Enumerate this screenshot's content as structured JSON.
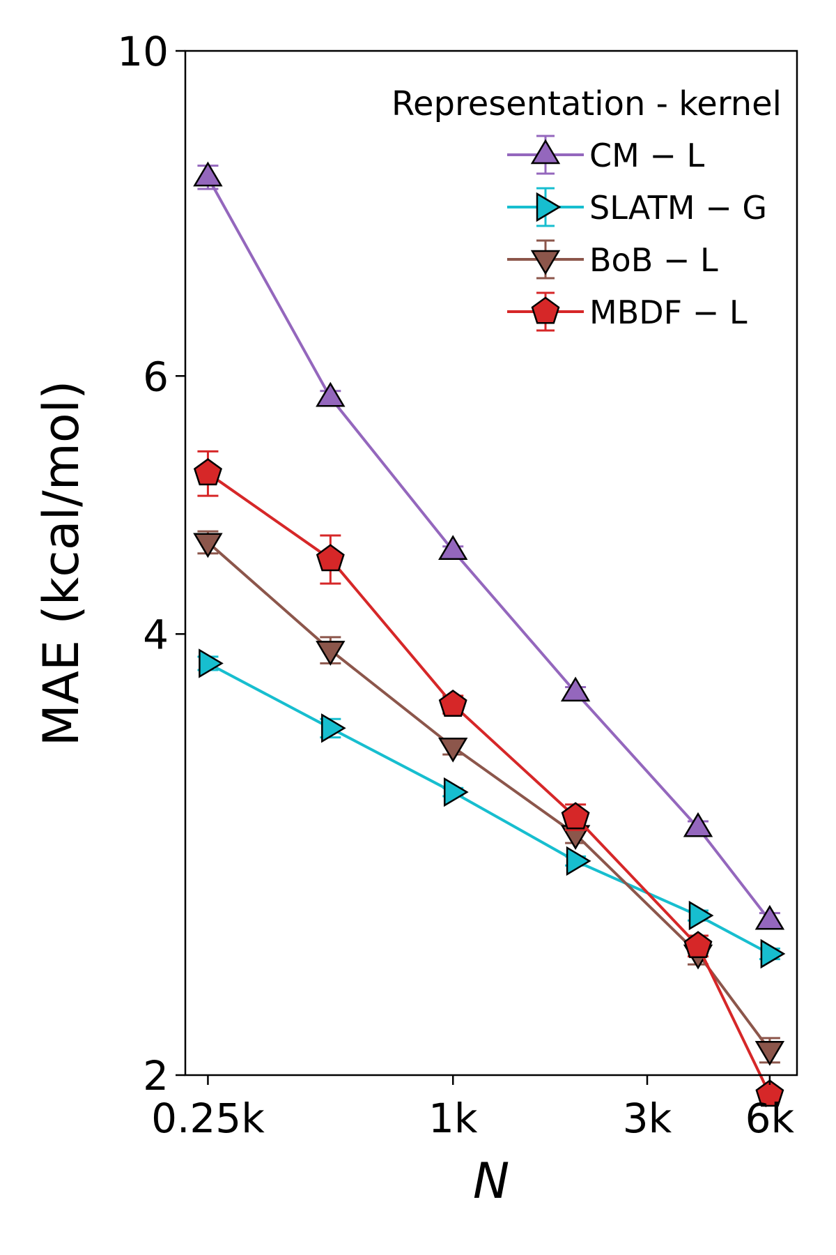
{
  "chart_data": {
    "type": "line",
    "xscale": "log",
    "yscale": "log",
    "xlabel": "N",
    "ylabel": "MAE (kcal/mol)",
    "xlim": [
      220,
      7000
    ],
    "ylim": [
      2,
      10
    ],
    "x": [
      250,
      500,
      1000,
      2000,
      4000,
      6000
    ],
    "xticks": [
      250,
      1000,
      3000,
      6000
    ],
    "xtick_labels": [
      "0.25k",
      "1k",
      "3k",
      "6k"
    ],
    "yticks": [
      2,
      4,
      6,
      10
    ],
    "ytick_labels": [
      "2",
      "4",
      "6",
      "10"
    ],
    "legend": {
      "title": "Representation - kernel",
      "position": "top-right"
    },
    "series": [
      {
        "name": "CM − L",
        "color": "#9467bd",
        "marker": "triangle-up",
        "values": [
          8.2,
          5.8,
          4.56,
          3.65,
          2.95,
          2.55
        ],
        "errors": [
          0.15,
          0.06,
          0.03,
          0.03,
          0.03,
          0.03
        ]
      },
      {
        "name": "SLATM − G",
        "color": "#17becf",
        "marker": "triangle-right",
        "values": [
          3.82,
          3.45,
          3.12,
          2.8,
          2.57,
          2.42
        ],
        "errors": [
          0.04,
          0.05,
          0.02,
          0.02,
          0.02,
          0.02
        ]
      },
      {
        "name": "BoB − L",
        "color": "#8c564b",
        "marker": "triangle-down",
        "values": [
          4.62,
          3.9,
          3.35,
          2.92,
          2.42,
          2.08
        ],
        "errors": [
          0.08,
          0.08,
          0.04,
          0.04,
          0.04,
          0.04
        ]
      },
      {
        "name": "MBDF − L",
        "color": "#d62728",
        "marker": "pentagon",
        "values": [
          5.15,
          4.5,
          3.58,
          3.0,
          2.45,
          1.94
        ],
        "errors": [
          0.18,
          0.17,
          0.05,
          0.06,
          0.04,
          0.02
        ]
      }
    ]
  }
}
